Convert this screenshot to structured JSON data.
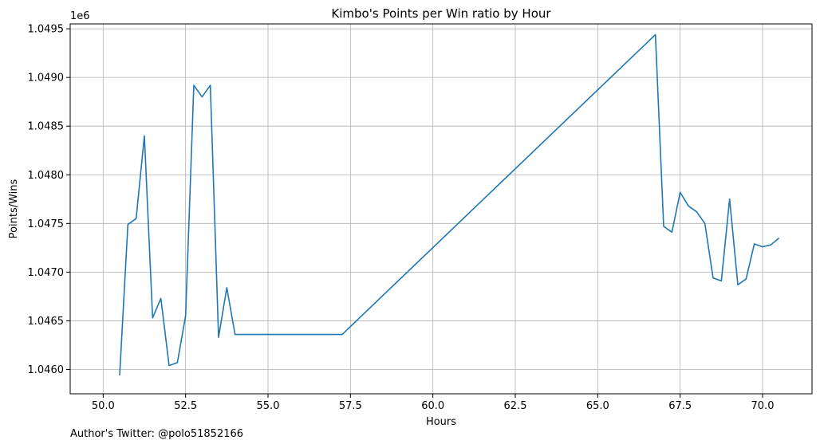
{
  "chart_data": {
    "type": "line",
    "title": "Kimbo's Points per Win ratio by Hour",
    "xlabel": "Hours",
    "ylabel": "Points/Wins",
    "offset_label": "1e6",
    "xlim": [
      49.0,
      71.5
    ],
    "ylim": [
      1.04575,
      1.04955
    ],
    "x_ticks": [
      50.0,
      52.5,
      55.0,
      57.5,
      60.0,
      62.5,
      65.0,
      67.5,
      70.0
    ],
    "x_tick_labels": [
      "50.0",
      "52.5",
      "55.0",
      "57.5",
      "60.0",
      "62.5",
      "65.0",
      "67.5",
      "70.0"
    ],
    "y_ticks": [
      1.046,
      1.0465,
      1.047,
      1.0475,
      1.048,
      1.0485,
      1.049,
      1.0495
    ],
    "y_tick_labels": [
      "1.0460",
      "1.0465",
      "1.0470",
      "1.0475",
      "1.0480",
      "1.0485",
      "1.0490",
      "1.0495"
    ],
    "grid": true,
    "line_color": "#1f77b4",
    "series": [
      {
        "x": [
          50.5,
          50.75,
          51.0,
          51.25,
          51.5,
          51.75,
          52.0,
          52.25,
          52.5,
          52.75,
          53.0,
          53.25,
          53.5,
          53.75,
          54.0,
          57.25,
          66.75,
          67.0,
          67.25,
          67.5,
          67.75,
          68.0,
          68.25,
          68.5,
          68.75,
          69.0,
          69.25,
          69.5,
          69.75,
          70.0,
          70.25,
          70.5
        ],
        "y": [
          1.04594,
          1.04749,
          1.04755,
          1.0484,
          1.04653,
          1.04673,
          1.04604,
          1.04607,
          1.04655,
          1.04892,
          1.0488,
          1.04892,
          1.04633,
          1.04684,
          1.04636,
          1.04636,
          1.04944,
          1.04747,
          1.04741,
          1.04782,
          1.04768,
          1.04762,
          1.0475,
          1.04694,
          1.04691,
          1.04775,
          1.04687,
          1.04693,
          1.04729,
          1.04726,
          1.04728,
          1.04735
        ]
      }
    ]
  },
  "footer": {
    "text": "Author's Twitter: @polo51852166"
  }
}
